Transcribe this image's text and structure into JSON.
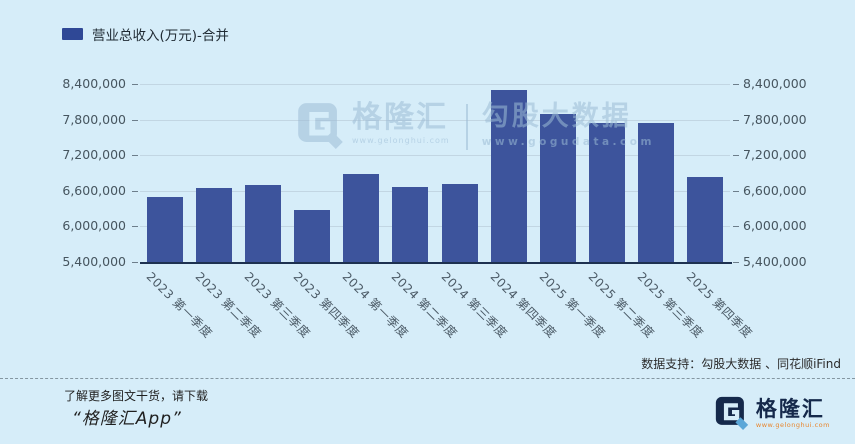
{
  "colors": {
    "background": "#d6edf9",
    "bar": "#3d549c",
    "legend_swatch": "#2f4896",
    "gridline": "#c2d6e3",
    "axis_line": "#1d3150",
    "axis_text": "#46555f",
    "watermark": "#9cbcd6",
    "url_orange": "#e8862e",
    "logo_navy": "#15294b",
    "logo_accent": "#5ba7d8"
  },
  "legend": {
    "label": "营业总收入(万元)-合并"
  },
  "chart_data": {
    "type": "bar",
    "title": "营业总收入(万元)-合并",
    "categories": [
      "2023 第一季度",
      "2023 第二季度",
      "2023 第三季度",
      "2023 第四季度",
      "2024 第一季度",
      "2024 第二季度",
      "2024 第三季度",
      "2024 第四季度",
      "2025 第一季度",
      "2025 第二季度",
      "2025 第三季度",
      "2025 第四季度"
    ],
    "values": [
      6500000,
      6640000,
      6700000,
      6270000,
      6890000,
      6660000,
      6720000,
      8300000,
      7900000,
      7740000,
      7750000,
      6830000
    ],
    "xlabel": "",
    "ylabel": "",
    "ylim": [
      5400000,
      8400000
    ],
    "ytick_interval": 600000,
    "ytick_labels": [
      "5,400,000",
      "6,000,000",
      "6,600,000",
      "7,200,000",
      "7,800,000",
      "8,400,000"
    ],
    "grid": true,
    "y_axis_sides": "both",
    "legend_position": "top-left",
    "x_label_rotation_deg": 45
  },
  "watermark": {
    "brand": "格隆汇",
    "brand_url": "www.gelonghui.com",
    "product": "勾股大数据",
    "product_url": "www.gogudata.com"
  },
  "footer": {
    "data_support": "数据支持：勾股大数据 、同花顺iFind",
    "promo_line1": "了解更多图文干货，请下载",
    "promo_line2": "“格隆汇App”",
    "logo_text": "格隆汇",
    "logo_url": "www.gelonghui.com"
  }
}
